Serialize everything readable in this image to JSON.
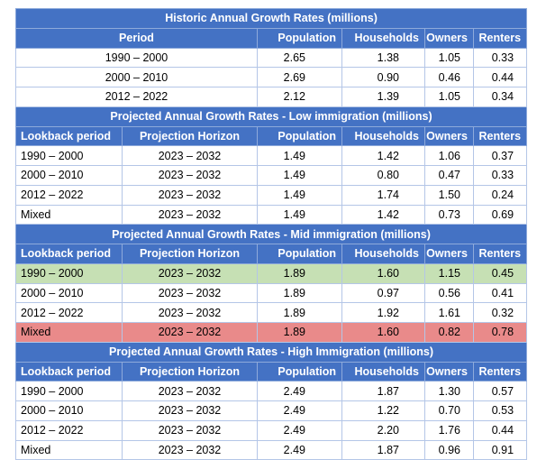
{
  "historic": {
    "title": "Historic Annual Growth Rates (millions)",
    "headers": [
      "Period",
      "Population",
      "Households",
      "Owners",
      "Renters"
    ],
    "rows": [
      [
        "1990 – 2000",
        "2.65",
        "1.38",
        "1.05",
        "0.33"
      ],
      [
        "2000 – 2010",
        "2.69",
        "0.90",
        "0.46",
        "0.44"
      ],
      [
        "2012 – 2022",
        "2.12",
        "1.39",
        "1.05",
        "0.34"
      ]
    ]
  },
  "low": {
    "title": "Projected Annual Growth Rates - Low immigration (millions)",
    "headers": [
      "Lookback period",
      "Projection Horizon",
      "Population",
      "Households",
      "Owners",
      "Renters"
    ],
    "rows": [
      [
        "1990 – 2000",
        "2023 – 2032",
        "1.49",
        "1.42",
        "1.06",
        "0.37"
      ],
      [
        "2000 – 2010",
        "2023 – 2032",
        "1.49",
        "0.80",
        "0.47",
        "0.33"
      ],
      [
        "2012 – 2022",
        "2023 – 2032",
        "1.49",
        "1.74",
        "1.50",
        "0.24"
      ],
      [
        "Mixed",
        "2023 – 2032",
        "1.49",
        "1.42",
        "0.73",
        "0.69"
      ]
    ]
  },
  "mid": {
    "title": "Projected Annual Growth Rates - Mid immigration (millions)",
    "headers": [
      "Lookback period",
      "Projection Horizon",
      "Population",
      "Households",
      "Owners",
      "Renters"
    ],
    "rows": [
      [
        "1990 – 2000",
        "2023 – 2032",
        "1.89",
        "1.60",
        "1.15",
        "0.45"
      ],
      [
        "2000 – 2010",
        "2023 – 2032",
        "1.89",
        "0.97",
        "0.56",
        "0.41"
      ],
      [
        "2012 – 2022",
        "2023 – 2032",
        "1.89",
        "1.92",
        "1.61",
        "0.32"
      ],
      [
        "Mixed",
        "2023 – 2032",
        "1.89",
        "1.60",
        "0.82",
        "0.78"
      ]
    ]
  },
  "high": {
    "title": "Projected Annual Growth Rates - High Immigration (millions)",
    "headers": [
      "Lookback period",
      "Projection Horizon",
      "Population",
      "Households",
      "Owners",
      "Renters"
    ],
    "rows": [
      [
        "1990 – 2000",
        "2023 – 2032",
        "2.49",
        "1.87",
        "1.30",
        "0.57"
      ],
      [
        "2000 – 2010",
        "2023 – 2032",
        "2.49",
        "1.22",
        "0.70",
        "0.53"
      ],
      [
        "2012 – 2022",
        "2023 – 2032",
        "2.49",
        "2.20",
        "1.76",
        "0.44"
      ],
      [
        "Mixed",
        "2023 – 2032",
        "2.49",
        "1.87",
        "0.96",
        "0.91"
      ]
    ]
  },
  "colors": {
    "header_blue": "#4472c4",
    "highlight_green": "#c6e0b4",
    "highlight_red": "#e98a8a"
  }
}
